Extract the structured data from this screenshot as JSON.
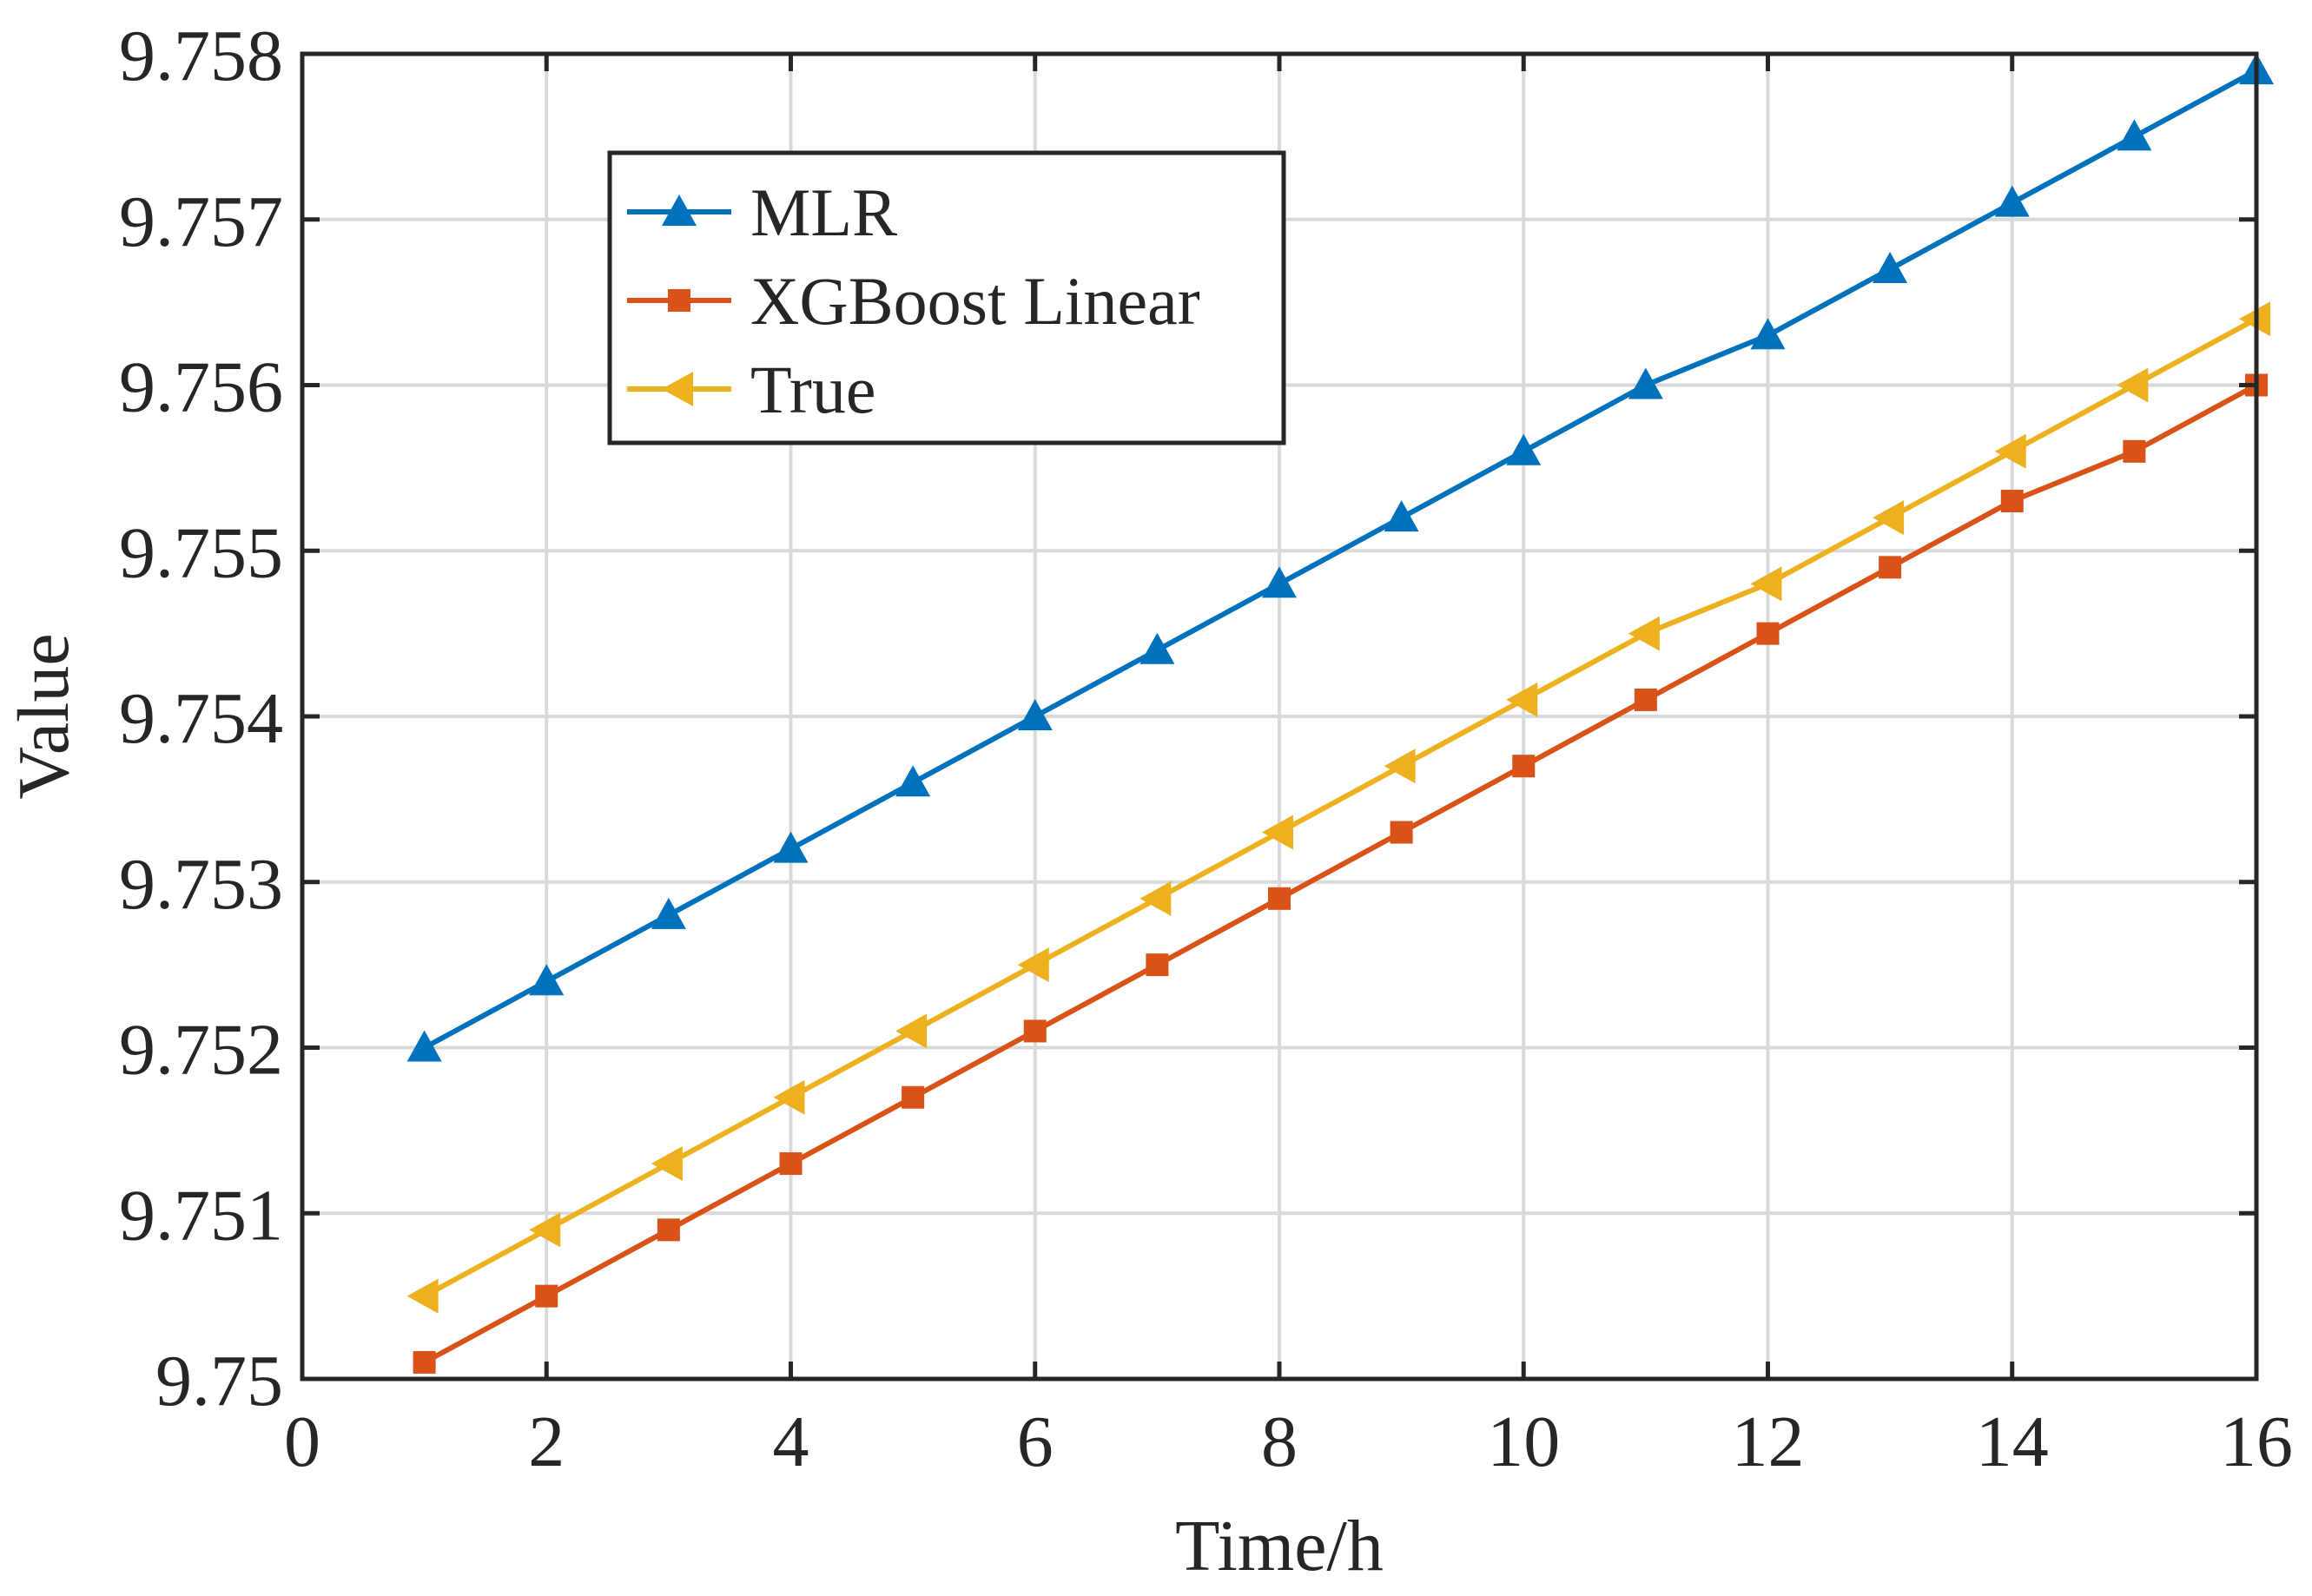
{
  "chart_data": {
    "type": "line",
    "title": "",
    "xlabel": "Time/h",
    "ylabel": "Value",
    "xlim": [
      0,
      16
    ],
    "ylim": [
      9.75,
      9.758
    ],
    "xticks": [
      "0",
      "2",
      "4",
      "6",
      "8",
      "10",
      "12",
      "14",
      "16"
    ],
    "yticks": [
      "9.75",
      "9.751",
      "9.752",
      "9.753",
      "9.754",
      "9.755",
      "9.756",
      "9.757",
      "9.758"
    ],
    "grid": true,
    "legend_position": "top-left",
    "x": [
      1,
      2,
      3,
      4,
      5,
      6,
      7,
      8,
      9,
      10,
      11,
      12,
      13,
      14,
      15,
      16
    ],
    "series": [
      {
        "name": "MLR",
        "color": "#0072BD",
        "marker": "triangle-up",
        "values": [
          9.752,
          9.7524,
          9.7528,
          9.7532,
          9.7536,
          9.754,
          9.7544,
          9.7548,
          9.7552,
          9.7556,
          9.756,
          9.7563,
          9.7567,
          9.7571,
          9.7575,
          9.7579
        ]
      },
      {
        "name": "XGBoost Linear",
        "color": "#D95319",
        "marker": "square",
        "values": [
          9.7501,
          9.7505,
          9.7509,
          9.7513,
          9.7517,
          9.7521,
          9.7525,
          9.7529,
          9.7533,
          9.7537,
          9.7541,
          9.7545,
          9.7549,
          9.7553,
          9.7556,
          9.756
        ]
      },
      {
        "name": "True",
        "color": "#EDB120",
        "marker": "triangle-left",
        "values": [
          9.7505,
          9.7509,
          9.7513,
          9.7517,
          9.7521,
          9.7525,
          9.7529,
          9.7533,
          9.7537,
          9.7541,
          9.7545,
          9.7548,
          9.7552,
          9.7556,
          9.756,
          9.7564
        ]
      }
    ]
  }
}
